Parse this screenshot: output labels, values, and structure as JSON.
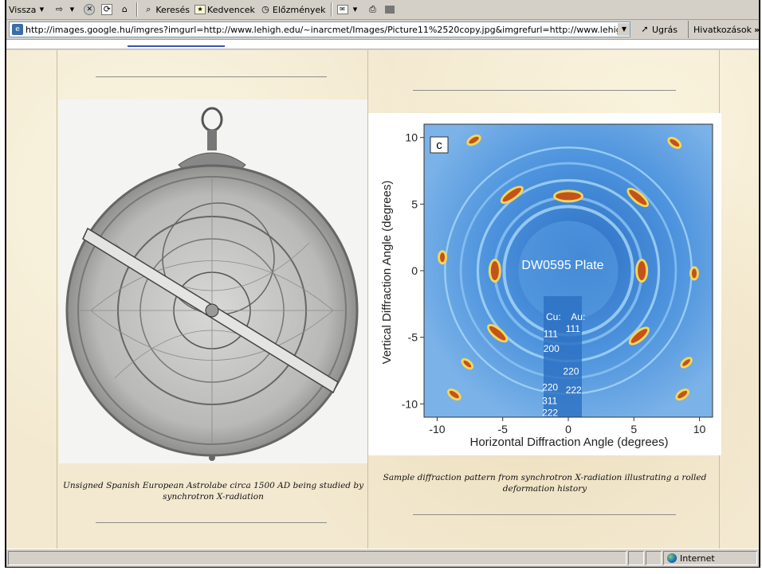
{
  "toolbar": {
    "back_label": "Vissza",
    "forward_glyph": "⇨",
    "search_label": "Keresés",
    "favorites_label": "Kedvencek",
    "history_label": "Előzmények"
  },
  "address_bar": {
    "url": "http://images.google.hu/imgres?imgurl=http://www.lehigh.edu/~inarcmet/Images/Picture11%2520copy.jpg&imgrefurl=http://www.lehigh.edu/~inarcmet",
    "go_label": "Ugrás",
    "links_label": "Hivatkozások",
    "links_more": "»"
  },
  "figures": {
    "astrolabe_caption": "Unsigned Spanish European Astrolabe circa 1500 AD being studied by synchrotron X-radiation",
    "diffraction_caption": "Sample diffraction pattern from synchrotron X-radiation illustrating a rolled deformation history"
  },
  "chart_data": {
    "type": "heatmap",
    "panel_label": "c",
    "annotation": "DW0595 Plate",
    "xlabel": "Horizontal Diffraction Angle (degrees)",
    "ylabel": "Vertical Diffraction Angle (degrees)",
    "xlim": [
      -11,
      11
    ],
    "ylim": [
      -11,
      11
    ],
    "xticks": [
      "-10",
      "-5",
      "0",
      "5",
      "10"
    ],
    "yticks": [
      "10",
      "5",
      "0",
      "-5",
      "-10"
    ],
    "ring_labels": {
      "header": [
        "Cu:",
        "Au:"
      ],
      "cu": [
        "111",
        "200",
        "220",
        "311",
        "222"
      ],
      "au": [
        "111",
        "220",
        "222"
      ]
    }
  },
  "status_bar": {
    "zone_label": "Internet"
  },
  "colors": {
    "page_background": "#f3e9d0",
    "chrome": "#d4d0c8",
    "diffraction_blue": "#3f86d6",
    "diffraction_orange": "#e0661c"
  }
}
